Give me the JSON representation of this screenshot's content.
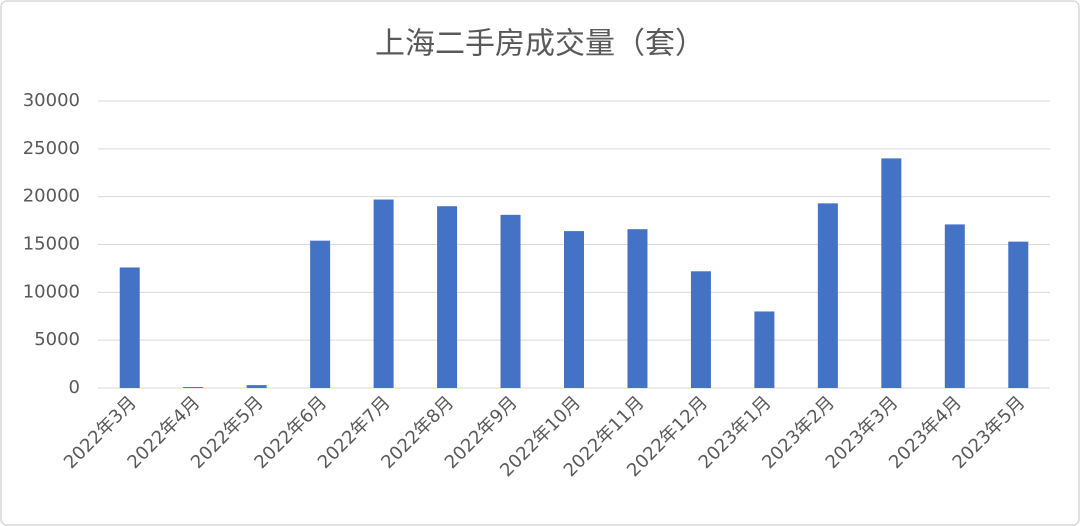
{
  "chart_data": {
    "type": "bar",
    "title": "上海二手房成交量（套）",
    "categories": [
      "2022年3月",
      "2022年4月",
      "2022年5月",
      "2022年6月",
      "2022年7月",
      "2022年8月",
      "2022年9月",
      "2022年10月",
      "2022年11月",
      "2022年12月",
      "2023年1月",
      "2023年2月",
      "2023年3月",
      "2023年4月",
      "2023年5月"
    ],
    "values": [
      12600,
      100,
      300,
      15400,
      19700,
      19000,
      18100,
      16400,
      16600,
      12200,
      8000,
      19300,
      24000,
      17100,
      15300
    ],
    "color": "#4472c4",
    "ylim": [
      0,
      30000
    ],
    "yticks": [
      0,
      5000,
      10000,
      15000,
      20000,
      25000,
      30000
    ],
    "grid": true
  }
}
